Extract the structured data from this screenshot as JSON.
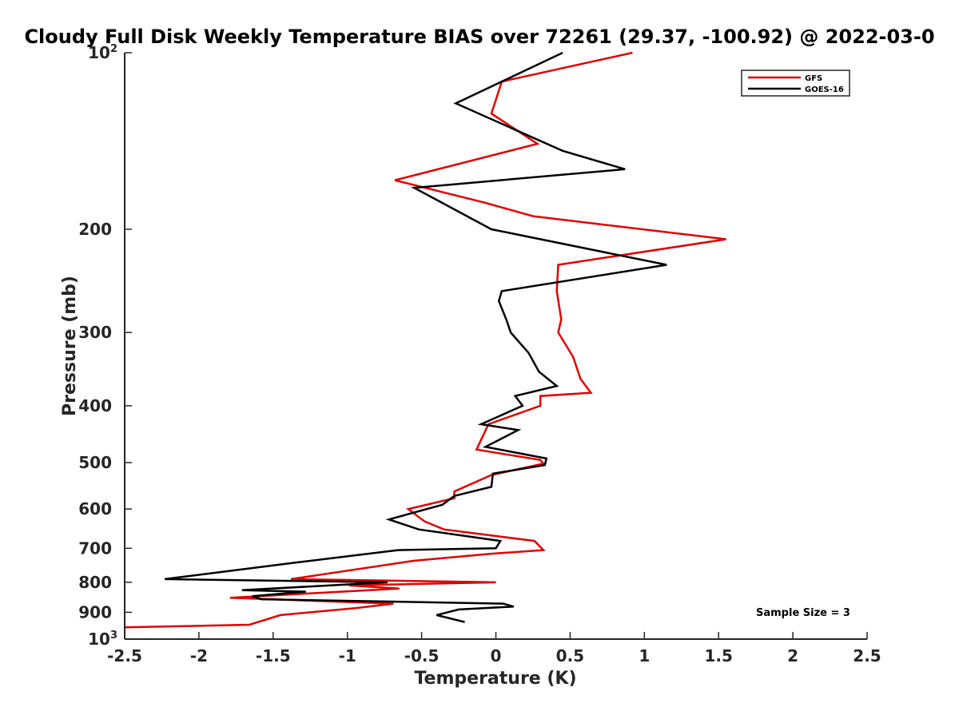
{
  "chart_data": {
    "type": "line",
    "title": "Cloudy Full Disk Weekly Temperature BIAS over 72261 (29.37, -100.92) @ 2022-03-0",
    "xlabel": "Temperature (K)",
    "ylabel": "Pressure (mb)",
    "xlim": [
      -2.5,
      2.5
    ],
    "ylim": [
      100,
      1000
    ],
    "y_scale": "log",
    "y_reversed": true,
    "grid": false,
    "legend_position": "top-right",
    "x_ticks": [
      "-2.5",
      "-2",
      "-1.5",
      "-1",
      "-0.5",
      "0",
      "0.5",
      "1",
      "1.5",
      "2",
      "2.5"
    ],
    "x_tick_values": [
      -2.5,
      -2,
      -1.5,
      -1,
      -0.5,
      0,
      0.5,
      1,
      1.5,
      2,
      2.5
    ],
    "y_ticks": [
      {
        "value": 100,
        "base": "10",
        "exp": "2"
      },
      {
        "value": 200,
        "label": "200"
      },
      {
        "value": 300,
        "label": "300"
      },
      {
        "value": 400,
        "label": "400"
      },
      {
        "value": 500,
        "label": "500"
      },
      {
        "value": 600,
        "label": "600"
      },
      {
        "value": 700,
        "label": "700"
      },
      {
        "value": 800,
        "label": "800"
      },
      {
        "value": 900,
        "label": "900"
      },
      {
        "value": 1000,
        "base": "10",
        "exp": "3"
      }
    ],
    "annotation": "Sample Size = 3",
    "series": [
      {
        "name": "GFS",
        "color": "#e00000",
        "x": [
          0.92,
          0.04,
          -0.03,
          0.28,
          -0.68,
          -0.08,
          0.25,
          1.55,
          0.42,
          0.41,
          0.44,
          0.42,
          0.52,
          0.57,
          0.64,
          0.3,
          0.3,
          -0.05,
          -0.13,
          0.3,
          0.32,
          -0.03,
          -0.28,
          -0.28,
          -0.59,
          -0.48,
          -0.35,
          0.26,
          0.32,
          -0.03,
          -0.55,
          -1.38,
          0.0,
          -0.99,
          -0.65,
          -1.79,
          -0.69,
          -0.94,
          -1.45,
          -1.66,
          -2.5
        ],
        "y": [
          100,
          112,
          127,
          143,
          165,
          180,
          190,
          208,
          230,
          255,
          285,
          300,
          330,
          360,
          380,
          385,
          400,
          430,
          475,
          495,
          502,
          525,
          560,
          575,
          600,
          630,
          650,
          680,
          705,
          715,
          735,
          790,
          800,
          810,
          820,
          850,
          870,
          885,
          910,
          945,
          955
        ]
      },
      {
        "name": "GOES-16",
        "color": "#000000",
        "x": [
          0.45,
          -0.27,
          0.45,
          0.87,
          -0.55,
          -0.03,
          1.15,
          0.04,
          0.02,
          0.07,
          0.1,
          0.22,
          0.29,
          0.41,
          0.13,
          0.18,
          -0.1,
          0.15,
          -0.07,
          0.34,
          0.33,
          -0.02,
          -0.03,
          -0.28,
          -0.36,
          -0.72,
          -0.52,
          0.03,
          0.0,
          -0.66,
          -1.34,
          -2.23,
          -0.73,
          -1.71,
          -1.28,
          -1.64,
          -1.58,
          0.05,
          0.12,
          -0.25,
          -0.4,
          -0.21
        ],
        "y": [
          100,
          122,
          147,
          158,
          170,
          200,
          230,
          255,
          265,
          285,
          300,
          325,
          350,
          370,
          385,
          400,
          430,
          440,
          470,
          492,
          505,
          522,
          550,
          570,
          590,
          625,
          650,
          680,
          700,
          705,
          740,
          790,
          800,
          825,
          830,
          845,
          855,
          870,
          880,
          890,
          910,
          935
        ]
      }
    ]
  }
}
